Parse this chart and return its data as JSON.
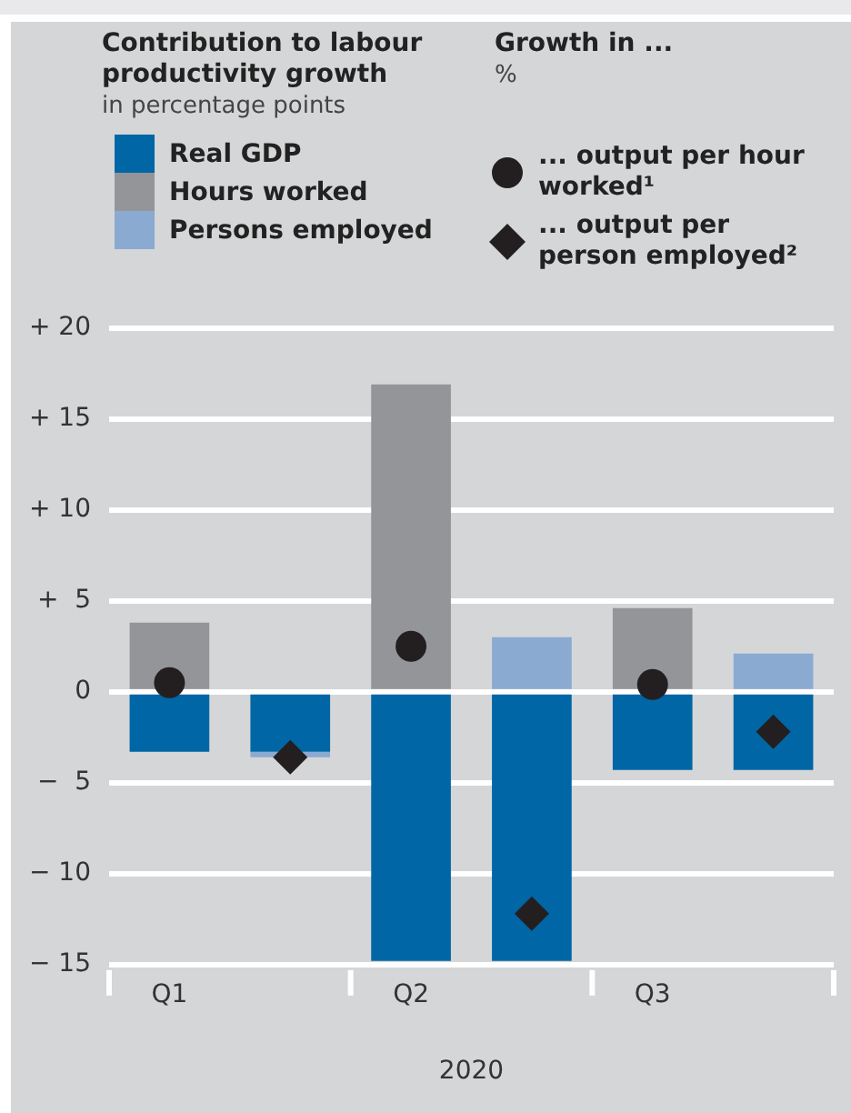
{
  "chart_data": {
    "type": "bar",
    "title": "Contribution to labour productivity growth",
    "subtitle": "in percentage points",
    "annotations": [
      "Growth in ...",
      "%"
    ],
    "xlabel": "2020",
    "categories": [
      "Q1",
      null,
      "Q2",
      null,
      "Q3",
      null
    ],
    "stacked": true,
    "legend": "top",
    "grid": "y",
    "ylim": [
      -15,
      20
    ],
    "yticks": [
      {
        "value": -15,
        "label": "− 15"
      },
      {
        "value": -10,
        "label": "− 10"
      },
      {
        "value": -5,
        "label": "−  5"
      },
      0,
      {
        "value": 5,
        "label": "+  5"
      },
      {
        "value": 10,
        "label": "+ 10"
      },
      {
        "value": 15,
        "label": "+ 15"
      },
      {
        "value": 20,
        "label": "+ 20"
      }
    ],
    "series": [
      {
        "name": "Real GDP",
        "color": "#0066a6",
        "values": [
          -3.3,
          -3.3,
          -14.8,
          -14.8,
          -4.3,
          -4.3
        ]
      },
      {
        "name": "Hours worked",
        "color": "#939598",
        "values": [
          3.8,
          null,
          16.9,
          null,
          4.6,
          null
        ]
      },
      {
        "name": "Persons employed",
        "color": "#8aaad2",
        "values": [
          null,
          -0.3,
          null,
          3.0,
          null,
          2.1
        ]
      },
      {
        "type": "scatter",
        "name": "... output per hour worked¹",
        "color": "#231f20",
        "marker": "circle",
        "values": [
          0.5,
          null,
          2.5,
          null,
          0.4,
          null
        ]
      },
      {
        "type": "scatter",
        "name": "... output per person employed²",
        "color": "#231f20",
        "marker": "diamond",
        "values": [
          null,
          -3.6,
          null,
          -12.2,
          null,
          -2.2
        ]
      }
    ]
  }
}
